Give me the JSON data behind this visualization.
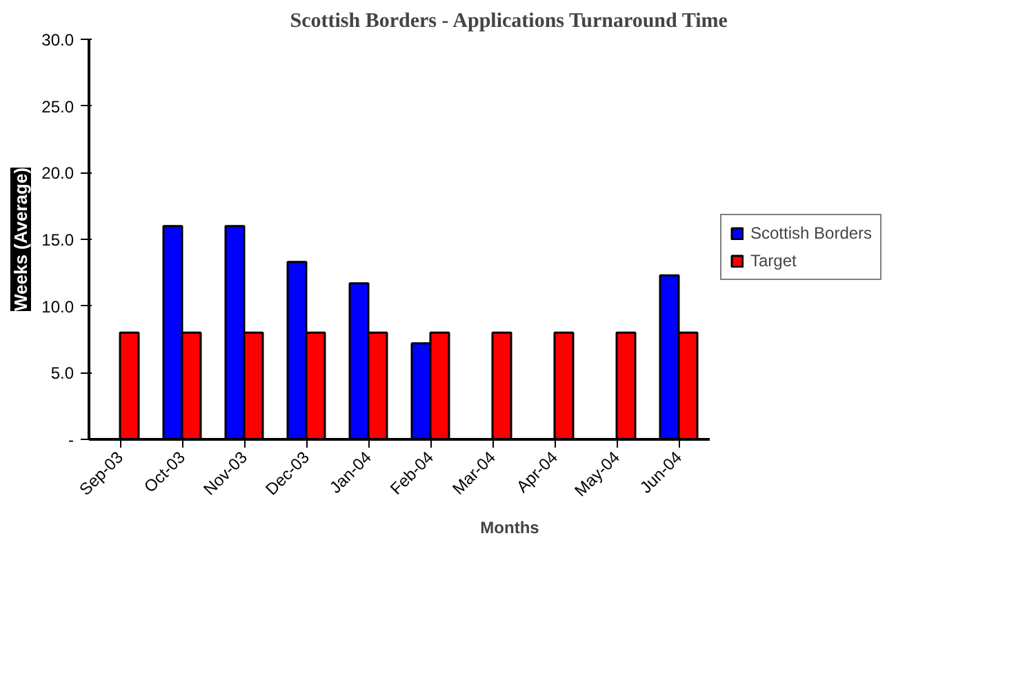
{
  "chart_data": {
    "type": "bar",
    "title": "Scottish Borders - Applications Turnaround Time",
    "xlabel": "Months",
    "ylabel": "Weeks (Average)",
    "categories": [
      "Sep-03",
      "Oct-03",
      "Nov-03",
      "Dec-03",
      "Jan-04",
      "Feb-04",
      "Mar-04",
      "Apr-04",
      "May-04",
      "Jun-04"
    ],
    "series": [
      {
        "name": "Scottish Borders",
        "color": "#0000ff",
        "values": [
          null,
          16.0,
          16.0,
          13.3,
          11.7,
          7.2,
          null,
          null,
          null,
          12.3
        ]
      },
      {
        "name": "Target",
        "color": "#ff0000",
        "values": [
          8.0,
          8.0,
          8.0,
          8.0,
          8.0,
          8.0,
          8.0,
          8.0,
          8.0,
          8.0
        ]
      }
    ],
    "ylim": [
      0,
      30
    ],
    "yticks": [
      {
        "value": 0,
        "label": "-"
      },
      {
        "value": 5,
        "label": "5.0"
      },
      {
        "value": 10,
        "label": "10.0"
      },
      {
        "value": 15,
        "label": "15.0"
      },
      {
        "value": 20,
        "label": "20.0"
      },
      {
        "value": 25,
        "label": "25.0"
      },
      {
        "value": 30,
        "label": "30.0"
      }
    ],
    "grid": false,
    "legend": "right"
  }
}
